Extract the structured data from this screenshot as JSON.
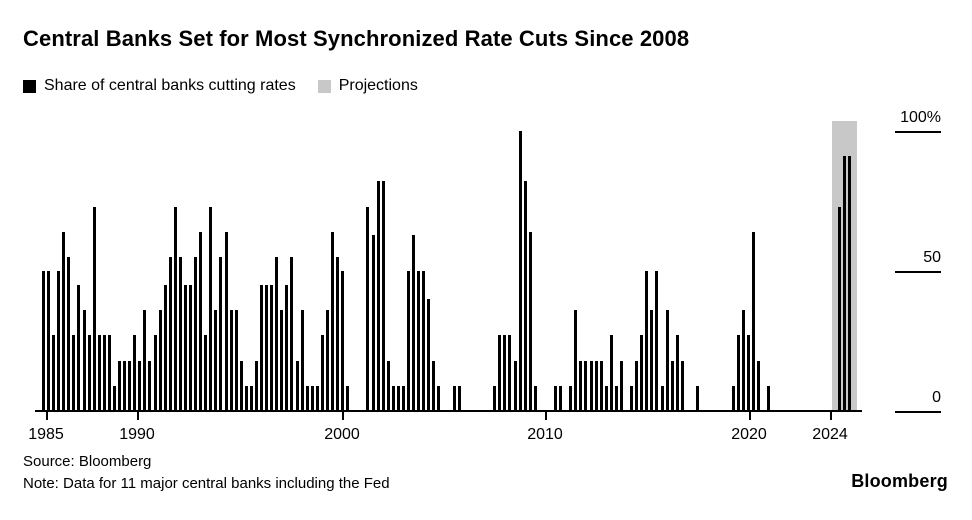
{
  "title": "Central Banks Set for Most Synchronized Rate Cuts Since 2008",
  "legend": {
    "cutting": {
      "label": "Share of central banks cutting rates",
      "color": "#000000"
    },
    "projections": {
      "label": "Projections",
      "color": "#c8c8c8"
    }
  },
  "footer": {
    "source": "Source: Bloomberg",
    "note": "Note: Data for 11 major central banks including the Fed",
    "brand": "Bloomberg"
  },
  "colors": {
    "bar": "#000000",
    "projection_band": "#c8c8c8",
    "text": "#000000",
    "background": "#ffffff"
  },
  "chart_data": {
    "type": "bar",
    "unit": "%",
    "frequency": "quarterly",
    "start_period": "1985-Q1",
    "end_period": "2024-Q4",
    "ylim": [
      0,
      100
    ],
    "grid": "off",
    "legend_position": "top-left",
    "yticks": [
      {
        "label": "100%",
        "value": 100
      },
      {
        "label": "50",
        "value": 50
      },
      {
        "label": "0",
        "value": 0
      }
    ],
    "xticks": [
      "1985",
      "1990",
      "2000",
      "2010",
      "2020",
      "2024"
    ],
    "values": [
      50,
      50,
      27,
      50,
      64,
      55,
      27,
      45,
      36,
      27,
      73,
      27,
      27,
      27,
      9,
      18,
      18,
      18,
      27,
      18,
      36,
      18,
      27,
      36,
      45,
      55,
      73,
      55,
      45,
      45,
      55,
      64,
      27,
      73,
      36,
      55,
      64,
      36,
      36,
      18,
      9,
      9,
      18,
      45,
      45,
      45,
      55,
      36,
      45,
      55,
      18,
      36,
      9,
      9,
      9,
      27,
      36,
      64,
      55,
      50,
      9,
      0,
      0,
      0,
      73,
      63,
      82,
      82,
      18,
      9,
      9,
      9,
      50,
      63,
      50,
      50,
      40,
      18,
      9,
      0,
      0,
      9,
      9,
      0,
      0,
      0,
      0,
      0,
      0,
      9,
      27,
      27,
      27,
      18,
      100,
      82,
      64,
      9,
      0,
      0,
      0,
      9,
      9,
      0,
      9,
      36,
      18,
      18,
      18,
      18,
      18,
      9,
      27,
      9,
      18,
      0,
      9,
      18,
      27,
      50,
      36,
      50,
      9,
      36,
      18,
      27,
      18,
      0,
      0,
      9,
      0,
      0,
      0,
      0,
      0,
      0,
      9,
      27,
      36,
      27,
      64,
      18,
      0,
      9,
      0,
      0,
      0,
      0,
      0,
      0,
      0,
      0,
      0,
      0,
      0,
      0,
      0,
      73,
      91,
      91
    ],
    "projection": {
      "label": "Projections",
      "approx_value_pct": 100,
      "covers_last_quarters": 4
    }
  }
}
